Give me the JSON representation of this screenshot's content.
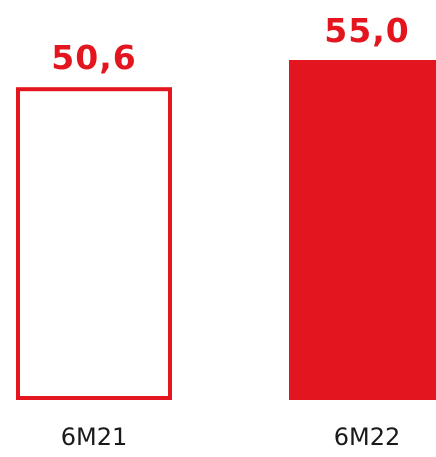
{
  "chart_data": {
    "type": "bar",
    "categories": [
      "6M21",
      "6M22"
    ],
    "values": [
      50.6,
      55.0
    ],
    "data_labels": [
      "50,6",
      "55,0"
    ],
    "bar_styles": [
      "outline",
      "filled"
    ],
    "colors": {
      "accent": "#e3161f",
      "label": "#e3161f",
      "tick": "#1a1a1a",
      "background": "#ffffff"
    },
    "title": "",
    "xlabel": "",
    "ylabel": "",
    "ylim": [
      0,
      55.0
    ],
    "grid": false,
    "legend": "none"
  }
}
